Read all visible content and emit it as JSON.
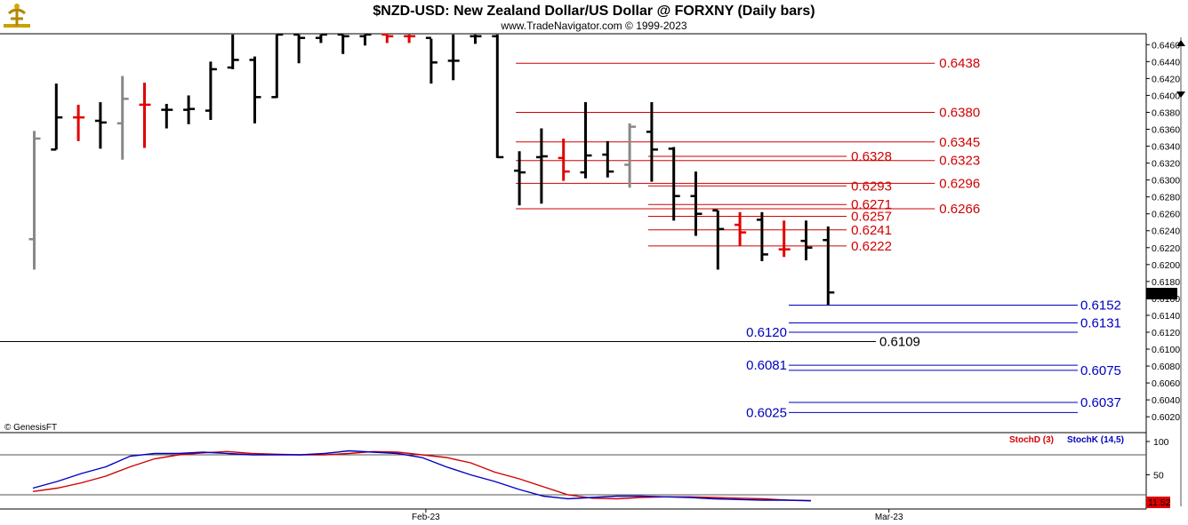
{
  "header": {
    "title": "$NZD-USD:  New Zealand Dollar/US Dollar @ FORXNY  (Daily bars)",
    "subtitle": "www.TradeNavigator.com © 1999-2023",
    "copyright": "© GenesisFT"
  },
  "colors": {
    "up": "#000000",
    "down": "#e00000",
    "neutral": "#888888",
    "resistance": "#d00000",
    "support": "#0000c0",
    "stochD": "#d00000",
    "stochK": "#0000c0"
  },
  "chart_data": [
    {
      "type": "ohlc",
      "series_name": "$NZD-USD",
      "ylim": [
        0.601,
        0.6472
      ],
      "y_ticks": [
        "0.6460",
        "0.6440",
        "0.6420",
        "0.6400",
        "0.6380",
        "0.6360",
        "0.6340",
        "0.6320",
        "0.6300",
        "0.6280",
        "0.6260",
        "0.6240",
        "0.6220",
        "0.6200",
        "0.6180",
        "0.6160",
        "0.6140",
        "0.6120",
        "0.6100",
        "0.6080",
        "0.6060",
        "0.6040",
        "0.6020"
      ],
      "last_price": "0.6167",
      "bars": [
        {
          "h": 0.6358,
          "l": 0.6194,
          "o": 0.623,
          "c": 0.6349,
          "col": "neutral"
        },
        {
          "h": 0.6414,
          "l": 0.6336,
          "o": 0.6336,
          "c": 0.6374,
          "col": "up"
        },
        {
          "h": 0.6389,
          "l": 0.6346,
          "o": 0.6374,
          "c": 0.6374,
          "col": "down"
        },
        {
          "h": 0.6392,
          "l": 0.6337,
          "o": 0.637,
          "c": 0.6368,
          "col": "up"
        },
        {
          "h": 0.6423,
          "l": 0.6324,
          "o": 0.6367,
          "c": 0.6396,
          "col": "neutral"
        },
        {
          "h": 0.6415,
          "l": 0.6338,
          "o": 0.6389,
          "c": 0.6389,
          "col": "down"
        },
        {
          "h": 0.639,
          "l": 0.6361,
          "o": 0.6383,
          "c": 0.6383,
          "col": "up"
        },
        {
          "h": 0.64,
          "l": 0.6366,
          "o": 0.6383,
          "c": 0.6384,
          "col": "up"
        },
        {
          "h": 0.644,
          "l": 0.6371,
          "o": 0.6382,
          "c": 0.6431,
          "col": "up"
        },
        {
          "h": 0.6472,
          "l": 0.6431,
          "o": 0.6433,
          "c": 0.6442,
          "col": "up"
        },
        {
          "h": 0.6446,
          "l": 0.6367,
          "o": 0.6442,
          "c": 0.6398,
          "col": "up"
        },
        {
          "h": 0.6472,
          "l": 0.6397,
          "o": 0.6398,
          "c": 0.6472,
          "col": "up"
        },
        {
          "h": 0.6472,
          "l": 0.6438,
          "o": 0.6472,
          "c": 0.6468,
          "col": "up"
        },
        {
          "h": 0.6472,
          "l": 0.6462,
          "o": 0.6468,
          "c": 0.6472,
          "col": "up"
        },
        {
          "h": 0.6472,
          "l": 0.6449,
          "o": 0.6472,
          "c": 0.647,
          "col": "up"
        },
        {
          "h": 0.6472,
          "l": 0.6459,
          "o": 0.647,
          "c": 0.6472,
          "col": "up"
        },
        {
          "h": 0.6472,
          "l": 0.6462,
          "o": 0.6472,
          "c": 0.647,
          "col": "down"
        },
        {
          "h": 0.6472,
          "l": 0.6462,
          "o": 0.647,
          "c": 0.647,
          "col": "down"
        },
        {
          "h": 0.6467,
          "l": 0.6414,
          "o": 0.6468,
          "c": 0.6439,
          "col": "up"
        },
        {
          "h": 0.6472,
          "l": 0.6418,
          "o": 0.6441,
          "c": 0.6441,
          "col": "up"
        },
        {
          "h": 0.6472,
          "l": 0.6461,
          "o": 0.647,
          "c": 0.647,
          "col": "up"
        },
        {
          "h": 0.6472,
          "l": 0.6326,
          "o": 0.647,
          "c": 0.6327,
          "col": "up"
        },
        {
          "h": 0.6334,
          "l": 0.627,
          "o": 0.6311,
          "c": 0.6309,
          "col": "up"
        },
        {
          "h": 0.6361,
          "l": 0.6272,
          "o": 0.6327,
          "c": 0.6328,
          "col": "up"
        },
        {
          "h": 0.6349,
          "l": 0.6299,
          "o": 0.6326,
          "c": 0.631,
          "col": "down"
        },
        {
          "h": 0.6392,
          "l": 0.6302,
          "o": 0.6309,
          "c": 0.6329,
          "col": "up"
        },
        {
          "h": 0.6346,
          "l": 0.6303,
          "o": 0.633,
          "c": 0.631,
          "col": "up"
        },
        {
          "h": 0.6367,
          "l": 0.6291,
          "o": 0.6318,
          "c": 0.6363,
          "col": "neutral"
        },
        {
          "h": 0.6392,
          "l": 0.6298,
          "o": 0.6357,
          "c": 0.6336,
          "col": "up"
        },
        {
          "h": 0.6339,
          "l": 0.6252,
          "o": 0.6337,
          "c": 0.6281,
          "col": "up"
        },
        {
          "h": 0.631,
          "l": 0.6234,
          "o": 0.6281,
          "c": 0.626,
          "col": "up"
        },
        {
          "h": 0.6264,
          "l": 0.6194,
          "o": 0.6264,
          "c": 0.6242,
          "col": "up"
        },
        {
          "h": 0.6262,
          "l": 0.6222,
          "o": 0.6247,
          "c": 0.6238,
          "col": "down"
        },
        {
          "h": 0.6262,
          "l": 0.6204,
          "o": 0.6253,
          "c": 0.6212,
          "col": "up"
        },
        {
          "h": 0.6252,
          "l": 0.6209,
          "o": 0.6218,
          "c": 0.6218,
          "col": "down"
        },
        {
          "h": 0.6252,
          "l": 0.6205,
          "o": 0.6228,
          "c": 0.622,
          "col": "up"
        },
        {
          "h": 0.6245,
          "l": 0.6152,
          "o": 0.6229,
          "c": 0.6167,
          "col": "up"
        }
      ],
      "resistance_levels": [
        {
          "value": 0.6438,
          "label": "0.6438",
          "x0": 22,
          "x1": 41
        },
        {
          "value": 0.638,
          "label": "0.6380",
          "x0": 22,
          "x1": 41
        },
        {
          "value": 0.6345,
          "label": "0.6345",
          "x0": 22,
          "x1": 41
        },
        {
          "value": 0.6323,
          "label": "0.6323",
          "x0": 22,
          "x1": 41
        },
        {
          "value": 0.6296,
          "label": "0.6296",
          "x0": 22,
          "x1": 41
        },
        {
          "value": 0.6266,
          "label": "0.6266",
          "x0": 22,
          "x1": 41
        },
        {
          "value": 0.6328,
          "label": "0.6328",
          "x0": 28,
          "x1": 37
        },
        {
          "value": 0.6293,
          "label": "0.6293",
          "x0": 28,
          "x1": 37
        },
        {
          "value": 0.6271,
          "label": "0.6271",
          "x0": 28,
          "x1": 37
        },
        {
          "value": 0.6257,
          "label": "0.6257",
          "x0": 28,
          "x1": 37
        },
        {
          "value": 0.6241,
          "label": "0.6241",
          "x0": 28,
          "x1": 37
        },
        {
          "value": 0.6222,
          "label": "0.6222",
          "x0": 28,
          "x1": 37
        }
      ],
      "support_levels": [
        {
          "value": 0.6152,
          "label": "0.6152",
          "side": "right"
        },
        {
          "value": 0.6131,
          "label": "0.6131",
          "side": "right"
        },
        {
          "value": 0.612,
          "label": "0.6120",
          "side": "left"
        },
        {
          "value": 0.6081,
          "label": "0.6081",
          "side": "left"
        },
        {
          "value": 0.6075,
          "label": "0.6075",
          "side": "right"
        },
        {
          "value": 0.6037,
          "label": "0.6037",
          "side": "right"
        },
        {
          "value": 0.6025,
          "label": "0.6025",
          "side": "left"
        }
      ],
      "reference_level": {
        "value": 0.6109,
        "label": "0.6109"
      }
    },
    {
      "type": "line",
      "indicator": "Stochastic",
      "ylim": [
        0,
        112
      ],
      "y_ticks": [
        "100",
        "50"
      ],
      "guide_lines": [
        80,
        20
      ],
      "last_value": "11.52",
      "series": [
        {
          "name": "StochD (3)",
          "color_key": "stochD",
          "values": [
            25,
            30,
            38,
            48,
            62,
            74,
            80,
            83,
            85,
            82,
            81,
            80,
            80,
            82,
            85,
            84,
            80,
            76,
            68,
            54,
            44,
            32,
            20,
            15,
            14,
            16,
            17,
            17,
            16,
            15,
            14,
            12,
            11.52
          ]
        },
        {
          "name": "StochK (14,5)",
          "color_key": "stochK",
          "values": [
            30,
            40,
            52,
            62,
            78,
            82,
            82,
            84,
            82,
            80,
            80,
            80,
            82,
            86,
            84,
            82,
            76,
            62,
            50,
            40,
            28,
            18,
            14,
            16,
            18,
            18,
            17,
            16,
            14,
            13,
            12,
            12,
            11
          ]
        }
      ],
      "x_labels": [
        {
          "label": "Feb-23",
          "bar": 18
        },
        {
          "label": "Mar-23",
          "bar": 39
        }
      ]
    }
  ]
}
